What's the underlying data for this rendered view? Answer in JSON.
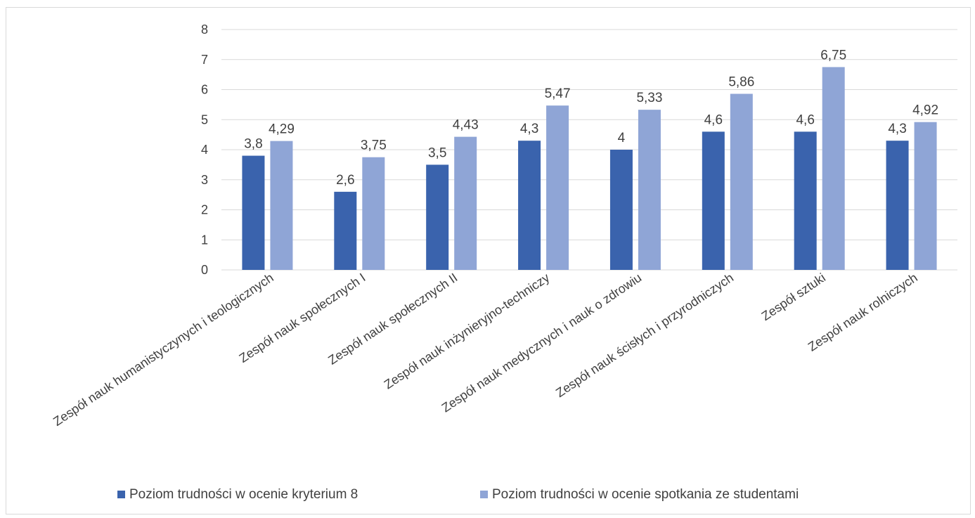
{
  "chart_data": {
    "type": "bar",
    "categories": [
      "Zespół nauk humanistyczynych i teologicznych",
      "Zespół nauk społecznych I",
      "Zespół nauk społecznych II",
      "Zespół nauk inżynieryjno-techniczy",
      "Zespół nauk medycznych i nauk o zdrowiu",
      "Zespół nauk ścisłych i przyrodniczych",
      "Zespół sztuki",
      "Zespół nauk rolniczych"
    ],
    "series": [
      {
        "name": "Poziom trudności w ocenie kryterium 8",
        "color": "#3a63ad",
        "values": [
          3.8,
          2.6,
          3.5,
          4.3,
          4,
          4.6,
          4.6,
          4.3
        ],
        "labels": [
          "3,8",
          "2,6",
          "3,5",
          "4,3",
          "4",
          "4,6",
          "4,6",
          "4,3"
        ]
      },
      {
        "name": "Poziom trudności w ocenie spotkania ze studentami",
        "color": "#8fa5d6",
        "values": [
          4.29,
          3.75,
          4.43,
          5.47,
          5.33,
          5.86,
          6.75,
          4.92
        ],
        "labels": [
          "4,29",
          "3,75",
          "4,43",
          "5,47",
          "5,33",
          "5,86",
          "6,75",
          "4,92"
        ]
      }
    ],
    "ylim": [
      0,
      8
    ],
    "yticks": [
      "0",
      "1",
      "2",
      "3",
      "4",
      "5",
      "6",
      "7",
      "8"
    ],
    "grid": true,
    "legend": "bottom",
    "gridColor": "#d9d9d9"
  }
}
